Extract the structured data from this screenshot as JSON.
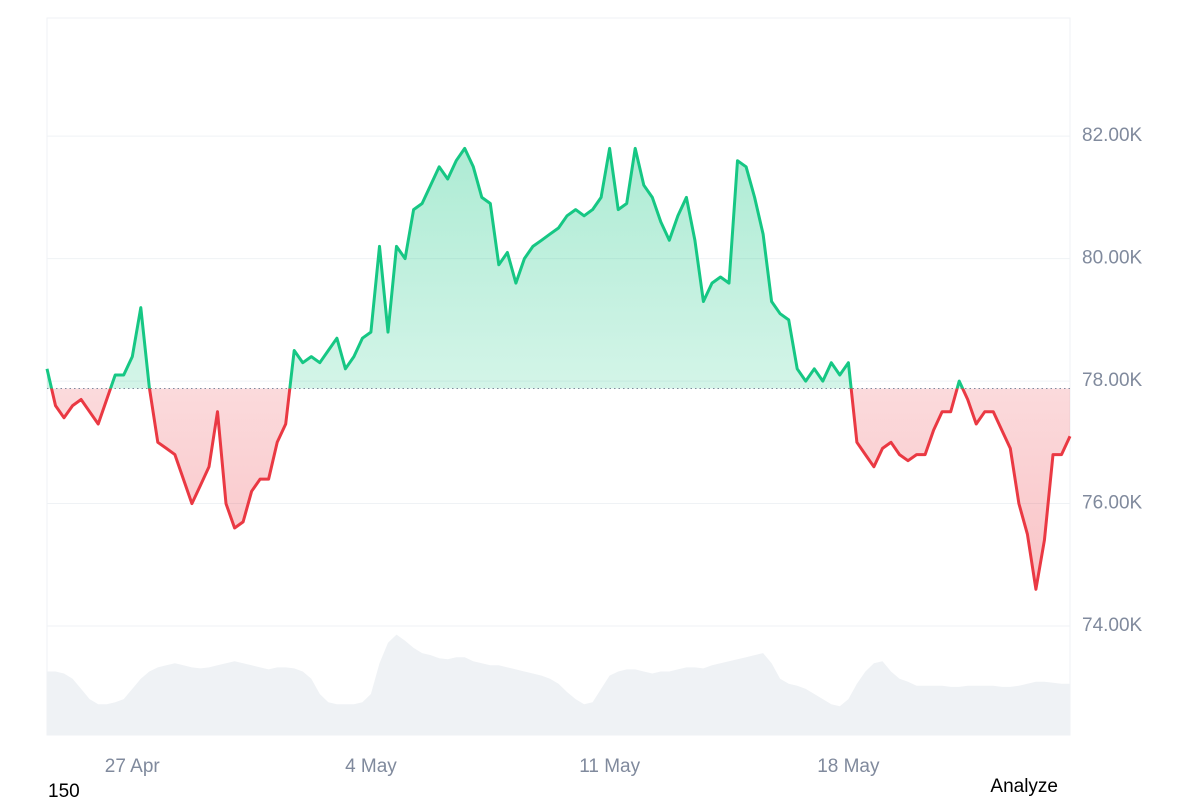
{
  "chart_data": {
    "type": "line",
    "categories": [
      null,
      null,
      null,
      null,
      null,
      null,
      null,
      null,
      null,
      null,
      "27 Apr",
      null,
      null,
      null,
      null,
      null,
      null,
      null,
      null,
      null,
      null,
      null,
      null,
      null,
      null,
      null,
      null,
      null,
      null,
      null,
      null,
      null,
      null,
      null,
      null,
      null,
      null,
      null,
      "4 May",
      null,
      null,
      null,
      null,
      null,
      null,
      null,
      null,
      null,
      null,
      null,
      null,
      null,
      null,
      null,
      null,
      null,
      null,
      null,
      null,
      null,
      null,
      null,
      null,
      null,
      null,
      null,
      "11 May",
      null,
      null,
      null,
      null,
      null,
      null,
      null,
      null,
      null,
      null,
      null,
      null,
      null,
      null,
      null,
      null,
      null,
      null,
      null,
      null,
      null,
      null,
      null,
      null,
      null,
      null,
      null,
      "18 May",
      null,
      null,
      null,
      null,
      null,
      null,
      null,
      null,
      null,
      null,
      null,
      null,
      null,
      null,
      null,
      null,
      null,
      null,
      null,
      null,
      null,
      null,
      null,
      null,
      null,
      null
    ],
    "values": [
      78200,
      77600,
      77400,
      77600,
      77700,
      77500,
      77300,
      77700,
      78100,
      78100,
      78400,
      79200,
      77900,
      77000,
      76900,
      76800,
      76400,
      76000,
      76300,
      76600,
      77500,
      76000,
      75600,
      75700,
      76200,
      76400,
      76400,
      77000,
      77300,
      78500,
      78300,
      78400,
      78300,
      78500,
      78700,
      78200,
      78400,
      78700,
      78800,
      80200,
      78800,
      80200,
      80000,
      80800,
      80900,
      81200,
      81500,
      81300,
      81600,
      81800,
      81500,
      81000,
      80900,
      79900,
      80100,
      79600,
      80000,
      80200,
      80300,
      80400,
      80500,
      80700,
      80800,
      80700,
      80800,
      81000,
      81800,
      80800,
      80900,
      81800,
      81200,
      81000,
      80600,
      80300,
      80700,
      81000,
      80300,
      79300,
      79600,
      79700,
      79600,
      81600,
      81500,
      81000,
      80400,
      79300,
      79100,
      79000,
      78200,
      78000,
      78200,
      78000,
      78300,
      78100,
      78300,
      77000,
      76800,
      76600,
      76900,
      77000,
      76800,
      76700,
      76800,
      76800,
      77200,
      77500,
      77500,
      78000,
      77700,
      77300,
      77500,
      77500,
      77200,
      76900,
      76000,
      75500,
      74600,
      75400,
      76800,
      76800,
      77100
    ],
    "volume_values": [
      62,
      62,
      60,
      55,
      45,
      35,
      30,
      30,
      32,
      35,
      45,
      55,
      62,
      66,
      68,
      70,
      68,
      66,
      65,
      66,
      68,
      70,
      72,
      70,
      68,
      66,
      64,
      66,
      66,
      65,
      62,
      55,
      40,
      32,
      30,
      30,
      30,
      32,
      40,
      70,
      90,
      98,
      92,
      85,
      80,
      78,
      75,
      74,
      76,
      76,
      72,
      70,
      68,
      68,
      66,
      64,
      62,
      60,
      58,
      55,
      50,
      42,
      35,
      30,
      32,
      45,
      58,
      62,
      64,
      64,
      62,
      60,
      62,
      62,
      64,
      66,
      66,
      65,
      68,
      70,
      72,
      74,
      76,
      78,
      80,
      70,
      55,
      50,
      48,
      45,
      40,
      35,
      30,
      28,
      35,
      50,
      62,
      70,
      72,
      62,
      55,
      52,
      48,
      48,
      48,
      48,
      47,
      47,
      48,
      48,
      48,
      48,
      47,
      47,
      48,
      50,
      52,
      52,
      51,
      50,
      50
    ],
    "baseline": 77880,
    "ylim": [
      72220,
      83930
    ],
    "y2lim": [
      0,
      700
    ],
    "yticks": [
      {
        "value": 74000,
        "label": "74.00K"
      },
      {
        "value": 76000,
        "label": "76.00K"
      },
      {
        "value": 78000,
        "label": "78.00K"
      },
      {
        "value": 80000,
        "label": "80.00K"
      },
      {
        "value": 82000,
        "label": "82.00K"
      }
    ],
    "grid": true,
    "up_color": "#16c784",
    "down_color": "#ea3943",
    "volume_color": "#eff2f5",
    "footer_left": "150",
    "action_label": "Analyze"
  }
}
